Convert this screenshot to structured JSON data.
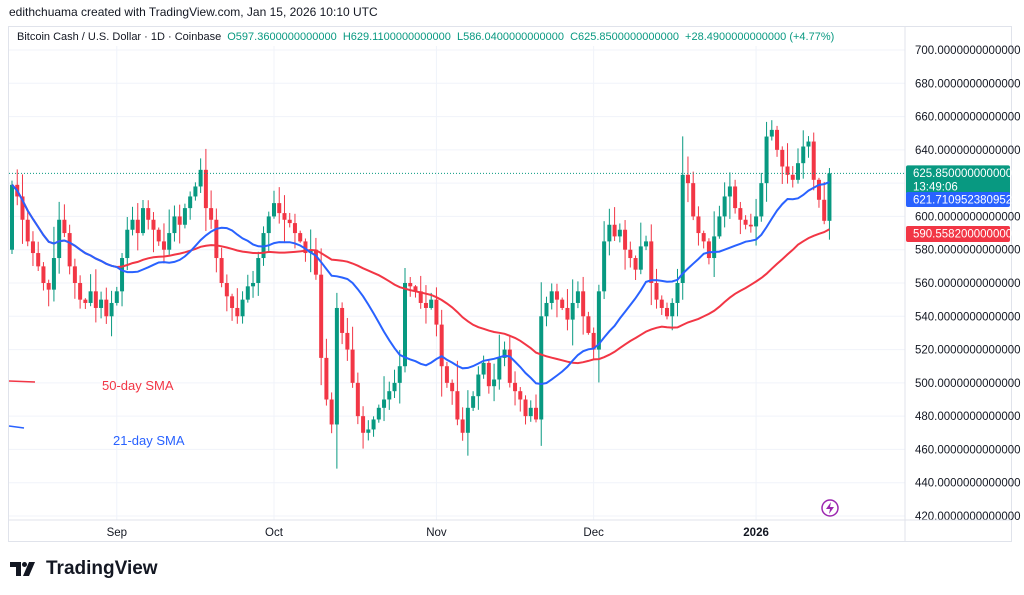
{
  "credit": "edithchuama created with TradingView.com, Jan 15, 2026 10:10 UTC",
  "legend": {
    "symbol": "Bitcoin Cash / U.S. Dollar · 1D · Coinbase",
    "open": "O597.3600000000000",
    "high": "H629.1100000000000",
    "low": "L586.0400000000000",
    "close": "C625.8500000000000",
    "change": "+28.4900000000000 (+4.77%)"
  },
  "annotations": {
    "sma50": "50-day SMA",
    "sma21": "21-day SMA"
  },
  "footer": {
    "logo_text": "TradingView"
  },
  "colors": {
    "up": "#089981",
    "down": "#f23645",
    "sma21": "#2962ff",
    "sma50": "#f23645",
    "accent": "#9c27b0"
  },
  "chart_data": {
    "type": "candlestick",
    "symbol": "BCHUSD",
    "interval": "1D",
    "start_date": "2025-08-12",
    "end_date": "2026-01-15",
    "ylim": [
      420,
      700
    ],
    "yticks": [
      "700.0000000000000",
      "680.0000000000000",
      "660.0000000000000",
      "640.0000000000000",
      "620.0000000000000",
      "600.0000000000000",
      "580.0000000000000",
      "560.0000000000000",
      "540.0000000000000",
      "520.0000000000000",
      "500.0000000000000",
      "480.0000000000000",
      "460.0000000000000",
      "440.0000000000000",
      "420.0000000000000"
    ],
    "xticks": [
      {
        "label": "Sep",
        "date": "2025-09-01"
      },
      {
        "label": "Oct",
        "date": "2025-10-01"
      },
      {
        "label": "Nov",
        "date": "2025-11-01"
      },
      {
        "label": "Dec",
        "date": "2025-12-01"
      },
      {
        "label": "2026",
        "date": "2026-01-01",
        "bold": true
      }
    ],
    "grid": true,
    "first_open": 580,
    "closes": [
      619,
      612,
      598,
      585,
      578,
      570,
      560,
      556,
      575,
      598,
      590,
      570,
      560,
      550,
      548,
      555,
      545,
      550,
      540,
      548,
      555,
      575,
      592,
      598,
      590,
      605,
      598,
      592,
      585,
      580,
      590,
      600,
      595,
      605,
      612,
      618,
      628,
      605,
      598,
      575,
      560,
      552,
      545,
      540,
      550,
      558,
      560,
      575,
      590,
      600,
      608,
      602,
      598,
      596,
      590,
      585,
      578,
      580,
      565,
      515,
      490,
      475,
      545,
      530,
      520,
      500,
      480,
      470,
      472,
      478,
      485,
      490,
      495,
      500,
      510,
      560,
      558,
      555,
      548,
      545,
      550,
      535,
      510,
      500,
      495,
      478,
      470,
      485,
      492,
      505,
      512,
      498,
      502,
      515,
      520,
      500,
      495,
      490,
      480,
      485,
      478,
      540,
      548,
      555,
      550,
      545,
      538,
      548,
      555,
      540,
      530,
      520,
      555,
      585,
      595,
      588,
      592,
      580,
      575,
      568,
      582,
      585,
      560,
      550,
      545,
      540,
      548,
      560,
      625,
      620,
      600,
      590,
      585,
      575,
      588,
      600,
      612,
      618,
      605,
      598,
      595,
      594,
      600,
      620,
      648,
      652,
      640,
      630,
      625,
      622,
      632,
      642,
      645,
      622,
      610,
      597.36,
      625.85
    ],
    "last_candle": {
      "open": 597.36,
      "high": 629.11,
      "low": 586.04,
      "close": 625.85
    },
    "price_labels": {
      "last": "625.8500000000000",
      "countdown": "13:49:06",
      "sma21": "621.7109523809524",
      "sma50": "590.5582000000002"
    },
    "series": [
      {
        "name": "21-day SMA",
        "period": 21
      },
      {
        "name": "50-day SMA",
        "period": 50
      }
    ]
  }
}
